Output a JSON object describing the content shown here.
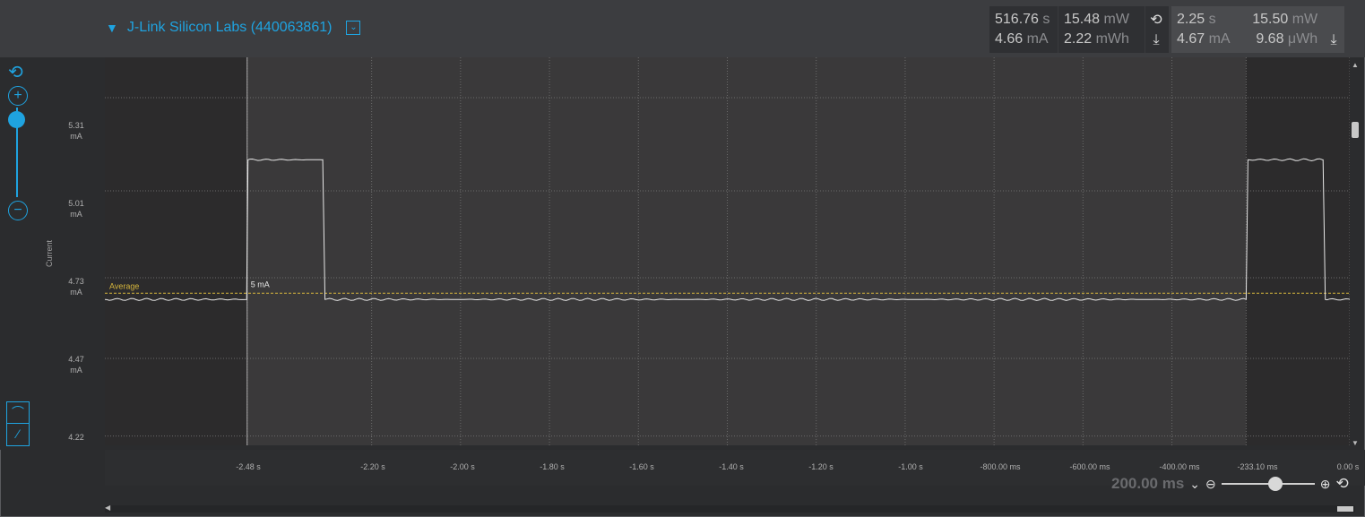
{
  "device": {
    "name": "J-Link Silicon Labs (440063861)",
    "expand_icon": "triangle-down-icon",
    "menu_icon": "chevron-down-icon"
  },
  "measure_total": {
    "time_value": "516.76",
    "time_unit": "s",
    "power_value": "15.48",
    "power_unit": "mW",
    "current_value": "4.66",
    "current_unit": "mA",
    "energy_value": "2.22",
    "energy_unit": "mWh"
  },
  "measure_selection": {
    "time_value": "2.25",
    "time_unit": "s",
    "power_value": "15.50",
    "power_unit": "mW",
    "current_value": "4.67",
    "current_unit": "mA",
    "energy_value": "9.68",
    "energy_unit": "μWh"
  },
  "y_axis": {
    "label": "Current",
    "ticks": [
      {
        "value": "5.31",
        "unit": "mA"
      },
      {
        "value": "5.01",
        "unit": "mA"
      },
      {
        "value": "4.73",
        "unit": "mA"
      },
      {
        "value": "4.47",
        "unit": "mA"
      },
      {
        "value": "4.22",
        "unit": ""
      }
    ]
  },
  "x_axis": {
    "ticks": [
      "-2.48 s",
      "-2.20 s",
      "-2.00 s",
      "-1.80 s",
      "-1.60 s",
      "-1.40 s",
      "-1.20 s",
      "-1.00 s",
      "-800.00 ms",
      "-600.00 ms",
      "-400.00 ms",
      "-233.10 ms",
      "0.00 s"
    ]
  },
  "chart_data": {
    "type": "line",
    "series": [
      {
        "x": [
          -2.8,
          -2.481,
          -2.478,
          -2.31,
          -2.305,
          -0.233,
          -0.229,
          -0.06,
          -0.055,
          0.0
        ],
        "values": [
          4.66,
          4.66,
          5.11,
          5.11,
          4.66,
          4.66,
          5.11,
          5.11,
          4.66,
          4.66
        ]
      }
    ],
    "annotations": [
      {
        "text": "Average",
        "y": 4.68
      },
      {
        "text": "5 mA",
        "y": 4.68
      }
    ],
    "ylim": [
      4.19,
      5.44
    ],
    "xlim": [
      -2.8,
      0.0
    ],
    "selection": {
      "start": "-2.48 s",
      "end": "-233.10 ms"
    },
    "grid": true,
    "colors": {
      "trace": "#e8e8e8",
      "average": "#d4b43c",
      "selection": "#aaaaaa"
    }
  },
  "zoom": {
    "value": "200.00 ms",
    "dropdown_icon": "chevron-down-icon",
    "minus_icon": "zoom-out-icon",
    "plus_icon": "zoom-in-icon",
    "reset_icon": "reset-icon",
    "level": 0.55
  },
  "toolbar": {
    "reset_icon": "reset-icon",
    "zoom_in_icon": "zoom-in-icon",
    "zoom_out_icon": "zoom-out-icon",
    "y_zoom_level": 0.95
  },
  "colors": {
    "accent": "#1fa3e0",
    "background": "#2b2c2e",
    "plot_bg": "#3a393a"
  }
}
